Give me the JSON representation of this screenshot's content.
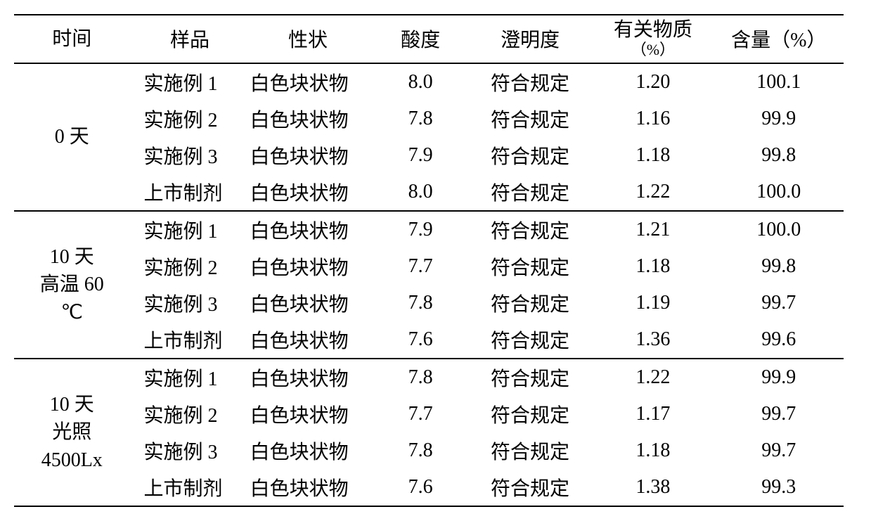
{
  "table": {
    "columns": {
      "time": "时间",
      "sample": "样品",
      "property": "性状",
      "acidity": "酸度",
      "clarity": "澄明度",
      "related": "有关物质",
      "related_unit": "（%）",
      "content": "含量（%）"
    },
    "groups": [
      {
        "time_label": "0 天",
        "rows": [
          {
            "sample": "实施例 1",
            "property": "白色块状物",
            "acidity": "8.0",
            "clarity": "符合规定",
            "related": "1.20",
            "content": "100.1"
          },
          {
            "sample": "实施例 2",
            "property": "白色块状物",
            "acidity": "7.8",
            "clarity": "符合规定",
            "related": "1.16",
            "content": "99.9"
          },
          {
            "sample": "实施例 3",
            "property": "白色块状物",
            "acidity": "7.9",
            "clarity": "符合规定",
            "related": "1.18",
            "content": "99.8"
          },
          {
            "sample": "上市制剂",
            "property": "白色块状物",
            "acidity": "8.0",
            "clarity": "符合规定",
            "related": "1.22",
            "content": "100.0"
          }
        ]
      },
      {
        "time_label": "10 天\n高温 60\n℃",
        "rows": [
          {
            "sample": "实施例 1",
            "property": "白色块状物",
            "acidity": "7.9",
            "clarity": "符合规定",
            "related": "1.21",
            "content": "100.0"
          },
          {
            "sample": "实施例 2",
            "property": "白色块状物",
            "acidity": "7.7",
            "clarity": "符合规定",
            "related": "1.18",
            "content": "99.8"
          },
          {
            "sample": "实施例 3",
            "property": "白色块状物",
            "acidity": "7.8",
            "clarity": "符合规定",
            "related": "1.19",
            "content": "99.7"
          },
          {
            "sample": "上市制剂",
            "property": "白色块状物",
            "acidity": "7.6",
            "clarity": "符合规定",
            "related": "1.36",
            "content": "99.6"
          }
        ]
      },
      {
        "time_label": "10 天\n光照\n4500Lx",
        "rows": [
          {
            "sample": "实施例 1",
            "property": "白色块状物",
            "acidity": "7.8",
            "clarity": "符合规定",
            "related": "1.22",
            "content": "99.9"
          },
          {
            "sample": "实施例 2",
            "property": "白色块状物",
            "acidity": "7.7",
            "clarity": "符合规定",
            "related": "1.17",
            "content": "99.7"
          },
          {
            "sample": "实施例 3",
            "property": "白色块状物",
            "acidity": "7.8",
            "clarity": "符合规定",
            "related": "1.18",
            "content": "99.7"
          },
          {
            "sample": "上市制剂",
            "property": "白色块状物",
            "acidity": "7.6",
            "clarity": "符合规定",
            "related": "1.38",
            "content": "99.3"
          }
        ]
      }
    ]
  }
}
